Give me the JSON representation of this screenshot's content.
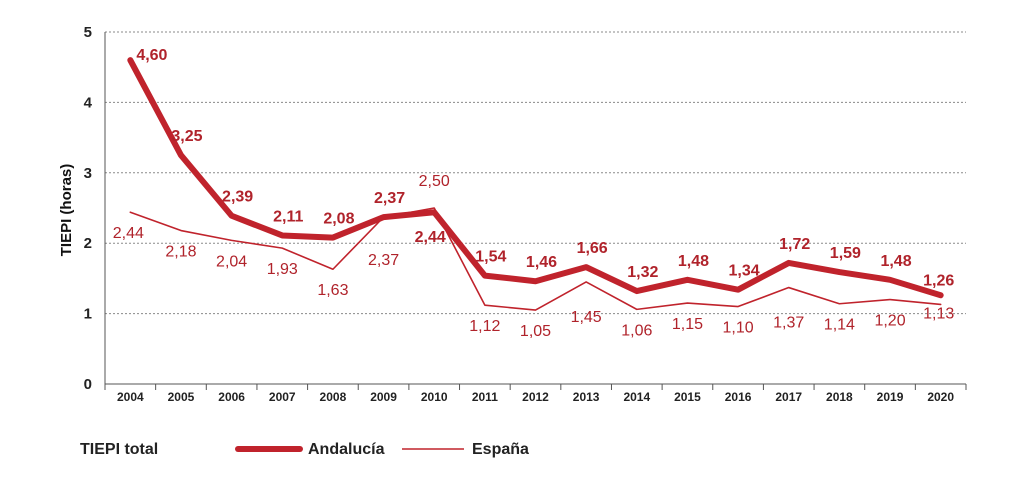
{
  "chart_data": {
    "type": "line",
    "title": "",
    "xlabel": "",
    "ylabel": "TIEPI (horas)",
    "ylim": [
      0,
      5
    ],
    "yticks": [
      0,
      1,
      2,
      3,
      4,
      5
    ],
    "grid": "horizontal-dotted",
    "legend_position": "bottom",
    "legend_title": "TIEPI total",
    "categories": [
      "2004",
      "2005",
      "2006",
      "2007",
      "2008",
      "2009",
      "2010",
      "2011",
      "2012",
      "2013",
      "2014",
      "2015",
      "2016",
      "2017",
      "2018",
      "2019",
      "2020"
    ],
    "series": [
      {
        "name": "Andalucía",
        "color": "#c0232c",
        "style": "thick",
        "values": [
          4.6,
          3.25,
          2.39,
          2.11,
          2.08,
          2.37,
          2.44,
          1.54,
          1.46,
          1.66,
          1.32,
          1.48,
          1.34,
          1.72,
          1.59,
          1.48,
          1.26
        ],
        "labels": [
          "4,60",
          "3,25",
          "2,39",
          "2,11",
          "2,08",
          "2,37",
          "2,44",
          "1,54",
          "1,46",
          "1,66",
          "1,32",
          "1,48",
          "1,34",
          "1,72",
          "1,59",
          "1,48",
          "1,26"
        ]
      },
      {
        "name": "España",
        "color": "#c0232c",
        "style": "thin",
        "values": [
          2.44,
          2.18,
          2.04,
          1.93,
          1.63,
          2.37,
          2.5,
          1.12,
          1.05,
          1.45,
          1.06,
          1.15,
          1.1,
          1.37,
          1.14,
          1.2,
          1.13
        ],
        "labels": [
          "2,44",
          "2,18",
          "2,04",
          "1,93",
          "1,63",
          "2,37",
          "2,50",
          "1,12",
          "1,05",
          "1,45",
          "1,06",
          "1,15",
          "1,10",
          "1,37",
          "1,14",
          "1,20",
          "1,13"
        ]
      }
    ]
  }
}
